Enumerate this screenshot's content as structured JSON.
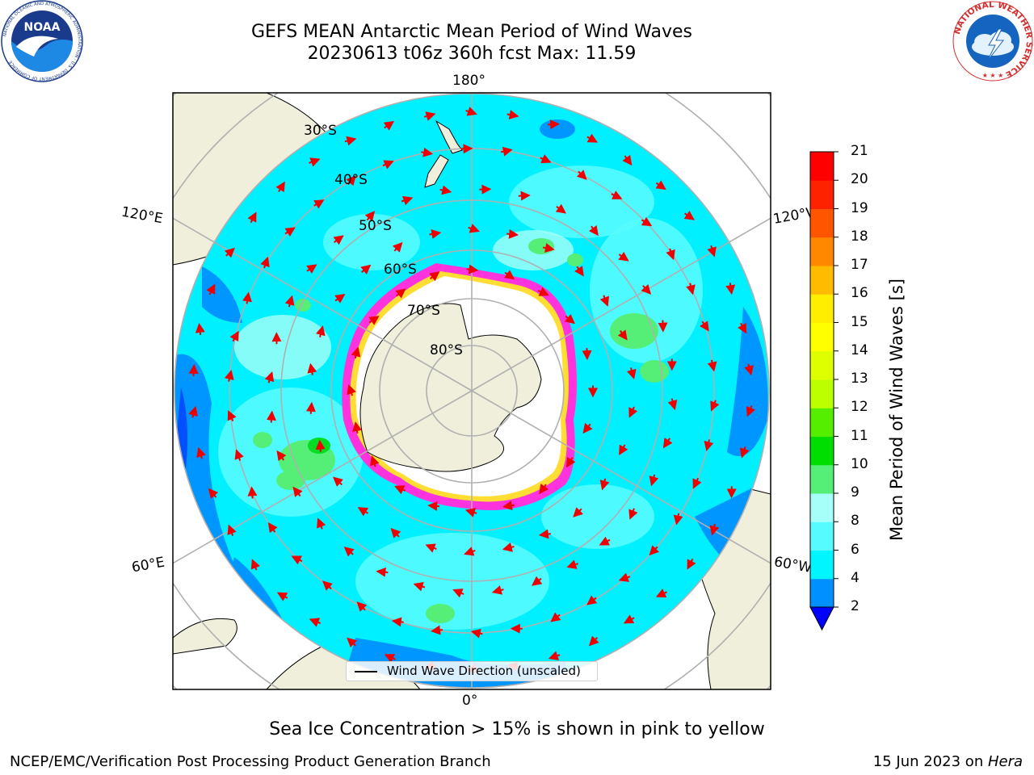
{
  "title": {
    "line1": "GEFS MEAN Antarctic Mean Period of Wind Waves",
    "line2": "20230613 t06z 360h fcst   Max: 11.59"
  },
  "logos": {
    "left": "NOAA",
    "left_ring": "NATIONAL OCEANIC AND ATMOSPHERIC ADMINISTRATION · U.S. DEPARTMENT OF COMMERCE",
    "right_ring": "NATIONAL WEATHER SERVICE"
  },
  "map": {
    "projection": "south-polar-stereographic",
    "longitude_labels": {
      "top": "180°",
      "bottom": "0°",
      "left_upper": "120°E",
      "left_lower": "60°E",
      "right_upper": "120°W",
      "right_lower": "60°W"
    },
    "latitude_labels": [
      "30°S",
      "40°S",
      "50°S",
      "60°S",
      "70°S",
      "80°S"
    ],
    "legend_label": "Wind Wave Direction (unscaled)",
    "colors": {
      "land": "#efefdb",
      "coast": "#000000",
      "grid": "#b0b0b0",
      "ocean_main": "#00f0ff",
      "ocean_light": "#55fbff",
      "ocean_pale": "#a8fff8",
      "ocean_blue": "#0096ff",
      "ocean_deep": "#0050ff",
      "green_light": "#55ee77",
      "green": "#00dd22",
      "ice_pink": "#ff33dd",
      "ice_yellow": "#ffdd33",
      "ice_white": "#ffffff",
      "arrow": "#ee0000"
    }
  },
  "colorbar": {
    "title": "Mean Period of Wind Waves [s]",
    "ticks": [
      "2",
      "4",
      "6",
      "8",
      "9",
      "10",
      "11",
      "12",
      "13",
      "14",
      "15",
      "16",
      "17",
      "18",
      "19",
      "20",
      "21"
    ],
    "colors": [
      "#0000ff",
      "#0090ff",
      "#00f5ff",
      "#55fbff",
      "#a6fff8",
      "#55ee77",
      "#00dd00",
      "#55ee00",
      "#bbff00",
      "#ddff00",
      "#ffff00",
      "#ffee00",
      "#ffbb00",
      "#ff8800",
      "#ff5500",
      "#ff2200",
      "#ff0000"
    ]
  },
  "caption": "Sea Ice Concentration > 15% is shown in pink to yellow",
  "footer": {
    "left": "NCEP/EMC/Verification Post Processing Product Generation Branch",
    "right_date": "15 Jun 2023 on ",
    "right_machine": "Hera"
  }
}
